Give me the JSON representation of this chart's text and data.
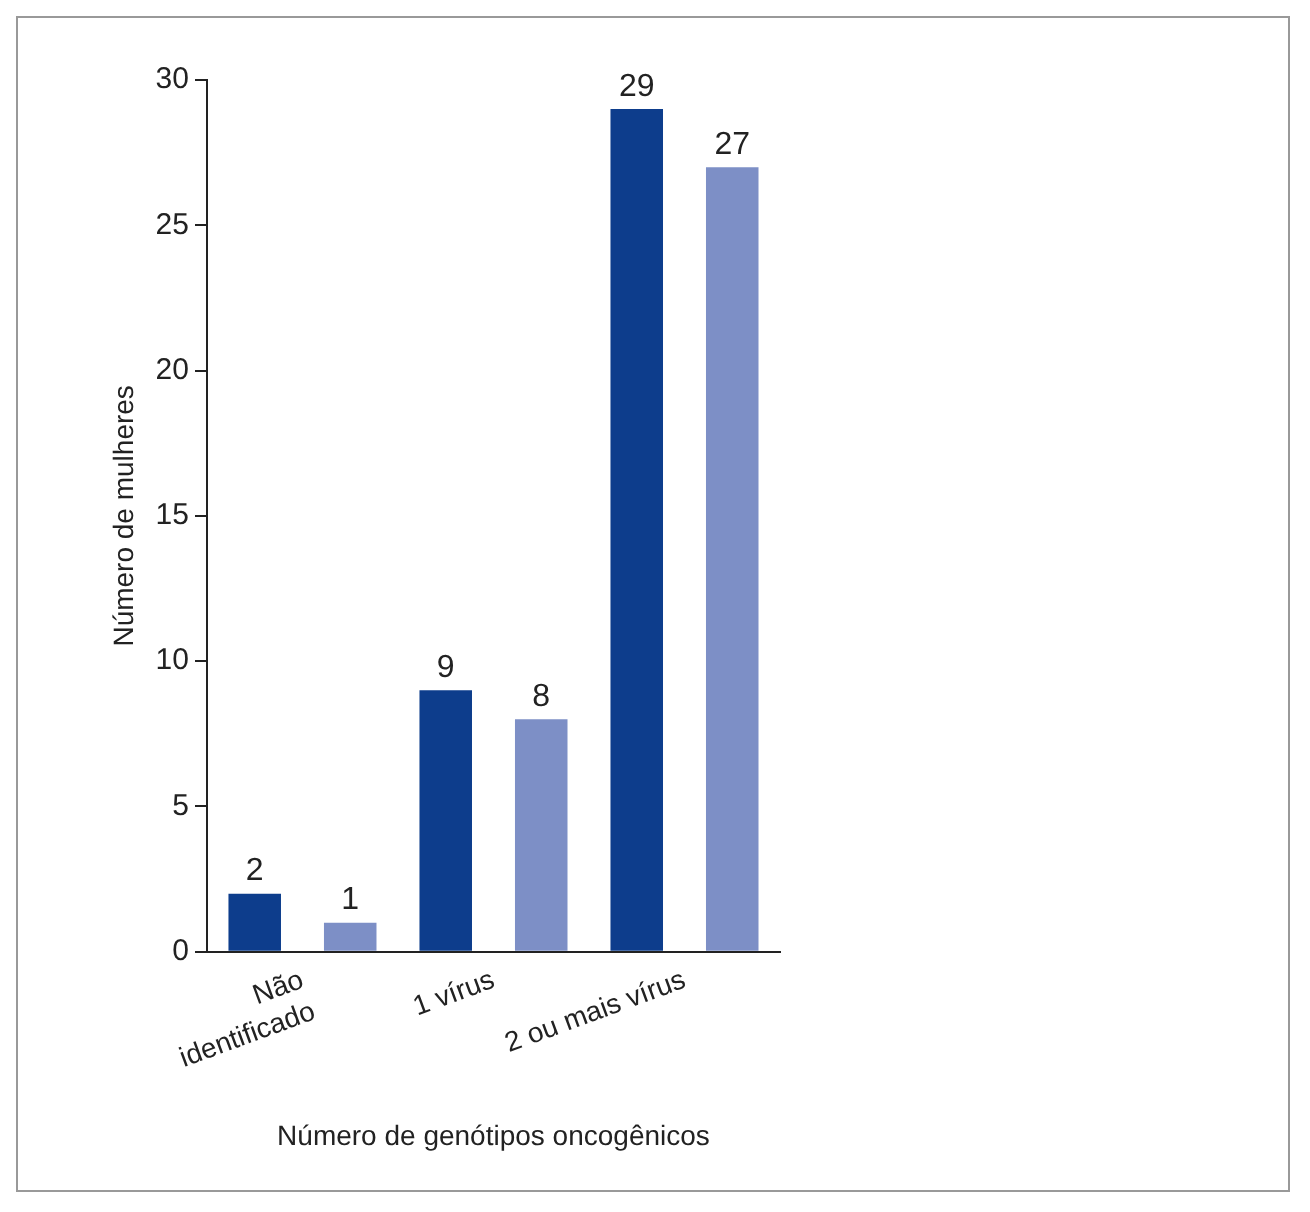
{
  "chart_data": {
    "type": "bar",
    "xlabel": "Número de genótipos oncogênicos",
    "ylabel": "Número de mulheres",
    "categories": [
      "Não\nidentificado",
      "1 vírus",
      "2 ou mais vírus"
    ],
    "series": [
      {
        "color": "#0d3d8c",
        "values": [
          2,
          9,
          29
        ]
      },
      {
        "color": "#7d8fc6",
        "values": [
          1,
          8,
          27
        ]
      }
    ],
    "ylim": [
      0,
      30
    ],
    "yticks": [
      0,
      5,
      10,
      15,
      20,
      25,
      30
    ],
    "grid": false,
    "legend": false,
    "data_labels": true
  }
}
